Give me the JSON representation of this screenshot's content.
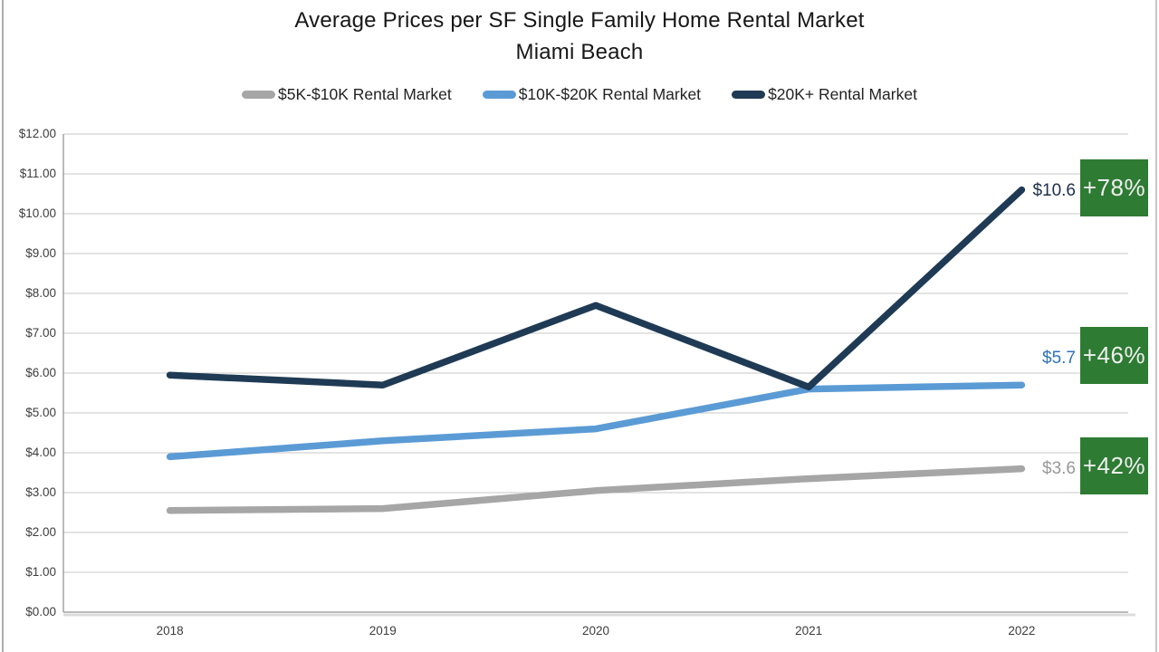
{
  "title": {
    "line1": "Average Prices per SF Single Family Home Rental Market",
    "line2": "Miami Beach"
  },
  "legend": [
    {
      "label": "$5K-$10K Rental Market",
      "color": "#a6a6a6"
    },
    {
      "label": "$10K-$20K Rental Market",
      "color": "#5b9bd5"
    },
    {
      "label": "$20K+ Rental Market",
      "color": "#1f3a54"
    }
  ],
  "chart_data": {
    "type": "line",
    "title": "Average Prices per SF Single Family Home Rental Market — Miami Beach",
    "categories": [
      "2018",
      "2019",
      "2020",
      "2021",
      "2022"
    ],
    "series": [
      {
        "name": "$5K-$10K Rental Market",
        "color": "#a6a6a6",
        "values": [
          2.55,
          2.6,
          3.05,
          3.35,
          3.6
        ]
      },
      {
        "name": "$10K-$20K Rental Market",
        "color": "#5b9bd5",
        "values": [
          3.9,
          4.3,
          4.6,
          5.6,
          5.7
        ]
      },
      {
        "name": "$20K+ Rental Market",
        "color": "#1f3a54",
        "values": [
          5.95,
          5.7,
          7.7,
          5.65,
          10.6
        ]
      }
    ],
    "ylim": [
      0,
      12
    ],
    "ytick_step": 1,
    "grid": true,
    "legend_position": "top"
  },
  "y_axis": {
    "labels": [
      "$12.00",
      "$11.00",
      "$10.00",
      "$9.00",
      "$8.00",
      "$7.00",
      "$6.00",
      "$5.00",
      "$4.00",
      "$3.00",
      "$2.00",
      "$1.00",
      "$0.00"
    ]
  },
  "x_axis": {
    "labels": [
      "2018",
      "2019",
      "2020",
      "2021",
      "2022"
    ]
  },
  "annotations": {
    "end_labels": [
      {
        "text": "$10.6",
        "series": "$20K+ Rental Market",
        "color": "#20314a"
      },
      {
        "text": "$5.7",
        "series": "$10K-$20K Rental Market",
        "color": "#2e74b5"
      },
      {
        "text": "$3.6",
        "series": "$5K-$10K Rental Market",
        "color": "#989898"
      }
    ],
    "badges": [
      {
        "text": "+78%",
        "series": "$20K+ Rental Market"
      },
      {
        "text": "+46%",
        "series": "$10K-$20K Rental Market"
      },
      {
        "text": "+42%",
        "series": "$5K-$10K Rental Market"
      }
    ],
    "badge_bg": "#2e7b33",
    "badge_text_color": "#efefef"
  }
}
